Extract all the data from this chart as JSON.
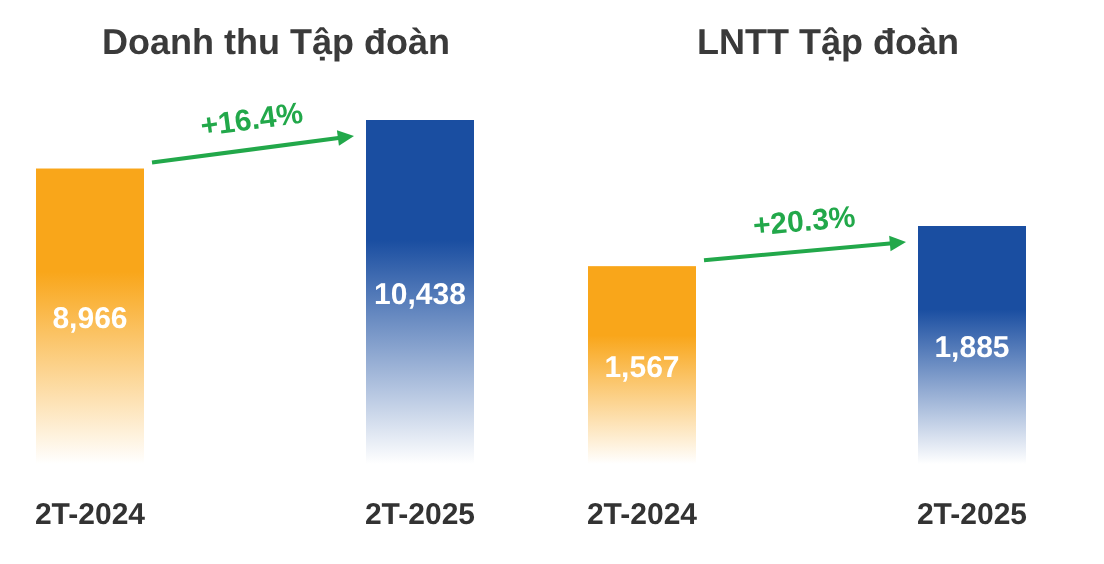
{
  "chart_data": [
    {
      "type": "bar",
      "title": "Doanh thu Tập đoàn",
      "categories": [
        "2T-2024",
        "2T-2025"
      ],
      "values": [
        8966,
        10438
      ],
      "colors": [
        "#f9a61a",
        "#1a4ea1"
      ],
      "value_labels": [
        "8,966",
        "10,438"
      ],
      "annotations": [
        "+16.4%"
      ]
    },
    {
      "type": "bar",
      "title": "LNTT Tập đoàn",
      "categories": [
        "2T-2024",
        "2T-2025"
      ],
      "values": [
        1567,
        1885
      ],
      "colors": [
        "#f9a61a",
        "#1a4ea1"
      ],
      "value_labels": [
        "1,567",
        "1,885"
      ],
      "annotations": [
        "+20.3%"
      ]
    }
  ]
}
